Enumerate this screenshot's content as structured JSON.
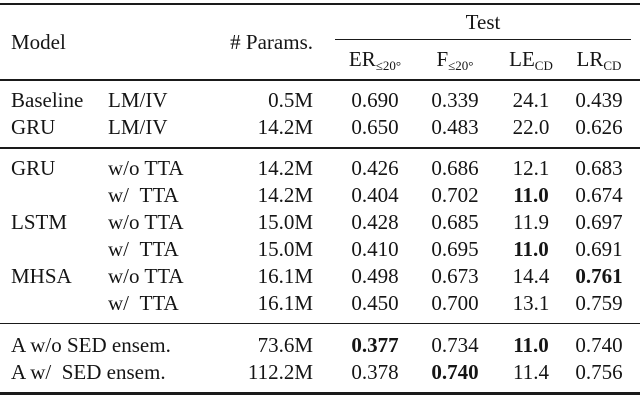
{
  "table": {
    "header": {
      "model": "Model",
      "params": "# Params.",
      "test_group": "Test",
      "metrics": [
        {
          "base": "ER",
          "sub": "≤20°"
        },
        {
          "base": "F",
          "sub": "≤20°"
        },
        {
          "base": "LE",
          "sub": "CD"
        },
        {
          "base": "LR",
          "sub": "CD"
        }
      ]
    },
    "groups": [
      {
        "rows": [
          {
            "model": "Baseline",
            "variant": "LM/IV",
            "params": "0.5M",
            "metrics": [
              {
                "v": "0.690",
                "bold": false
              },
              {
                "v": "0.339",
                "bold": false
              },
              {
                "v": "24.1",
                "bold": false
              },
              {
                "v": "0.439",
                "bold": false
              }
            ]
          },
          {
            "model": "GRU",
            "variant": "LM/IV",
            "params": "14.2M",
            "metrics": [
              {
                "v": "0.650",
                "bold": false
              },
              {
                "v": "0.483",
                "bold": false
              },
              {
                "v": "22.0",
                "bold": false
              },
              {
                "v": "0.626",
                "bold": false
              }
            ]
          }
        ]
      },
      {
        "rows": [
          {
            "model": "GRU",
            "variant": "w/o TTA",
            "params": "14.2M",
            "metrics": [
              {
                "v": "0.426",
                "bold": false
              },
              {
                "v": "0.686",
                "bold": false
              },
              {
                "v": "12.1",
                "bold": false
              },
              {
                "v": "0.683",
                "bold": false
              }
            ]
          },
          {
            "model": "",
            "variant": "w/  TTA",
            "params": "14.2M",
            "metrics": [
              {
                "v": "0.404",
                "bold": false
              },
              {
                "v": "0.702",
                "bold": false
              },
              {
                "v": "11.0",
                "bold": true
              },
              {
                "v": "0.674",
                "bold": false
              }
            ]
          },
          {
            "model": "LSTM",
            "variant": "w/o TTA",
            "params": "15.0M",
            "metrics": [
              {
                "v": "0.428",
                "bold": false
              },
              {
                "v": "0.685",
                "bold": false
              },
              {
                "v": "11.9",
                "bold": false
              },
              {
                "v": "0.697",
                "bold": false
              }
            ]
          },
          {
            "model": "",
            "variant": "w/  TTA",
            "params": "15.0M",
            "metrics": [
              {
                "v": "0.410",
                "bold": false
              },
              {
                "v": "0.695",
                "bold": false
              },
              {
                "v": "11.0",
                "bold": true
              },
              {
                "v": "0.691",
                "bold": false
              }
            ]
          },
          {
            "model": "MHSA",
            "variant": "w/o TTA",
            "params": "16.1M",
            "metrics": [
              {
                "v": "0.498",
                "bold": false
              },
              {
                "v": "0.673",
                "bold": false
              },
              {
                "v": "14.4",
                "bold": false
              },
              {
                "v": "0.761",
                "bold": true
              }
            ]
          },
          {
            "model": "",
            "variant": "w/  TTA",
            "params": "16.1M",
            "metrics": [
              {
                "v": "0.450",
                "bold": false
              },
              {
                "v": "0.700",
                "bold": false
              },
              {
                "v": "13.1",
                "bold": false
              },
              {
                "v": "0.759",
                "bold": false
              }
            ]
          }
        ]
      },
      {
        "rows": [
          {
            "model": "A w/o SED ensem.",
            "variant": null,
            "params": "73.6M",
            "metrics": [
              {
                "v": "0.377",
                "bold": true
              },
              {
                "v": "0.734",
                "bold": false
              },
              {
                "v": "11.0",
                "bold": true
              },
              {
                "v": "0.740",
                "bold": false
              }
            ]
          },
          {
            "model": "A w/  SED ensem.",
            "variant": null,
            "params": "112.2M",
            "metrics": [
              {
                "v": "0.378",
                "bold": false
              },
              {
                "v": "0.740",
                "bold": true
              },
              {
                "v": "11.4",
                "bold": false
              },
              {
                "v": "0.756",
                "bold": false
              }
            ]
          }
        ]
      }
    ]
  }
}
